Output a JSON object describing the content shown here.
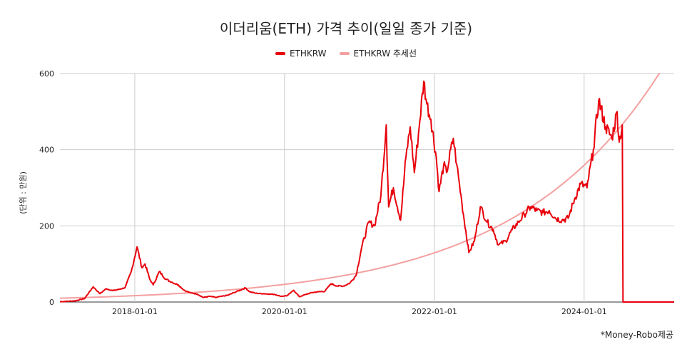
{
  "chart_data": {
    "type": "line",
    "title": "이더리움(ETH) 가격 추이(일일 종가 기준)",
    "xlabel": "",
    "ylabel": "(단위 : 만원)",
    "ylim": [
      0,
      600
    ],
    "y_ticks": [
      0,
      200,
      400,
      600
    ],
    "x_ticks": [
      "2018-01-01",
      "2020-01-01",
      "2022-01-01",
      "2024-01-01"
    ],
    "x_range": [
      "2017-01-01",
      "2025-03-15"
    ],
    "legend_position": "top-center",
    "grid": true,
    "credit": "*Money-Robo제공",
    "series": [
      {
        "name": "ETHKRW",
        "color": "#e8000b",
        "points": [
          [
            "2017-01-01",
            1
          ],
          [
            "2017-03-15",
            3
          ],
          [
            "2017-05-01",
            9
          ],
          [
            "2017-06-12",
            40
          ],
          [
            "2017-07-15",
            22
          ],
          [
            "2017-08-15",
            35
          ],
          [
            "2017-09-15",
            30
          ],
          [
            "2017-10-15",
            33
          ],
          [
            "2017-11-15",
            38
          ],
          [
            "2017-12-15",
            80
          ],
          [
            "2018-01-12",
            145
          ],
          [
            "2018-02-05",
            90
          ],
          [
            "2018-02-20",
            100
          ],
          [
            "2018-03-15",
            60
          ],
          [
            "2018-04-01",
            45
          ],
          [
            "2018-05-01",
            80
          ],
          [
            "2018-06-01",
            60
          ],
          [
            "2018-07-01",
            52
          ],
          [
            "2018-08-01",
            45
          ],
          [
            "2018-09-01",
            30
          ],
          [
            "2018-10-01",
            24
          ],
          [
            "2018-11-01",
            21
          ],
          [
            "2018-12-01",
            12
          ],
          [
            "2019-01-01",
            15
          ],
          [
            "2019-02-01",
            12
          ],
          [
            "2019-03-01",
            15
          ],
          [
            "2019-04-01",
            18
          ],
          [
            "2019-05-01",
            25
          ],
          [
            "2019-06-25",
            37
          ],
          [
            "2019-07-15",
            27
          ],
          [
            "2019-08-15",
            23
          ],
          [
            "2019-09-15",
            22
          ],
          [
            "2019-10-15",
            21
          ],
          [
            "2019-11-15",
            20
          ],
          [
            "2019-12-15",
            15
          ],
          [
            "2020-01-15",
            17
          ],
          [
            "2020-02-15",
            31
          ],
          [
            "2020-03-13",
            14
          ],
          [
            "2020-04-15",
            20
          ],
          [
            "2020-05-15",
            25
          ],
          [
            "2020-06-15",
            27
          ],
          [
            "2020-07-15",
            28
          ],
          [
            "2020-08-15",
            48
          ],
          [
            "2020-09-15",
            42
          ],
          [
            "2020-10-15",
            42
          ],
          [
            "2020-11-15",
            50
          ],
          [
            "2020-12-15",
            70
          ],
          [
            "2021-01-10",
            140
          ],
          [
            "2021-02-15",
            210
          ],
          [
            "2021-03-15",
            200
          ],
          [
            "2021-04-15",
            280
          ],
          [
            "2021-05-11",
            465
          ],
          [
            "2021-05-23",
            250
          ],
          [
            "2021-06-15",
            300
          ],
          [
            "2021-07-20",
            215
          ],
          [
            "2021-08-15",
            380
          ],
          [
            "2021-09-05",
            460
          ],
          [
            "2021-09-25",
            340
          ],
          [
            "2021-10-15",
            440
          ],
          [
            "2021-11-10",
            580
          ],
          [
            "2021-11-25",
            520
          ],
          [
            "2021-12-15",
            480
          ],
          [
            "2022-01-10",
            380
          ],
          [
            "2022-01-24",
            290
          ],
          [
            "2022-02-15",
            360
          ],
          [
            "2022-03-01",
            340
          ],
          [
            "2022-04-03",
            430
          ],
          [
            "2022-04-20",
            360
          ],
          [
            "2022-05-15",
            260
          ],
          [
            "2022-06-18",
            130
          ],
          [
            "2022-07-15",
            160
          ],
          [
            "2022-08-13",
            250
          ],
          [
            "2022-09-15",
            210
          ],
          [
            "2022-10-15",
            190
          ],
          [
            "2022-11-09",
            150
          ],
          [
            "2022-12-15",
            160
          ],
          [
            "2023-01-15",
            190
          ],
          [
            "2023-02-15",
            210
          ],
          [
            "2023-03-15",
            230
          ],
          [
            "2023-04-15",
            250
          ],
          [
            "2023-05-15",
            240
          ],
          [
            "2023-06-15",
            235
          ],
          [
            "2023-07-15",
            240
          ],
          [
            "2023-08-15",
            220
          ],
          [
            "2023-09-15",
            215
          ],
          [
            "2023-10-15",
            220
          ],
          [
            "2023-11-15",
            270
          ],
          [
            "2023-12-15",
            310
          ],
          [
            "2024-01-15",
            300
          ],
          [
            "2024-02-15",
            400
          ],
          [
            "2024-03-12",
            530
          ],
          [
            "2024-04-15",
            460
          ],
          [
            "2024-05-15",
            430
          ],
          [
            "2024-06-10",
            500
          ],
          [
            "2024-06-20",
            420
          ],
          [
            "2024-07-05",
            465
          ],
          [
            "2024-07-10",
            0
          ],
          [
            "2025-03-15",
            0
          ]
        ]
      },
      {
        "name": "ETHKRW 추세선",
        "color": "#f4a0a0",
        "trend": "exponential",
        "points": [
          [
            "2017-01-01",
            10
          ],
          [
            "2025-01-01",
            600
          ]
        ]
      }
    ]
  }
}
